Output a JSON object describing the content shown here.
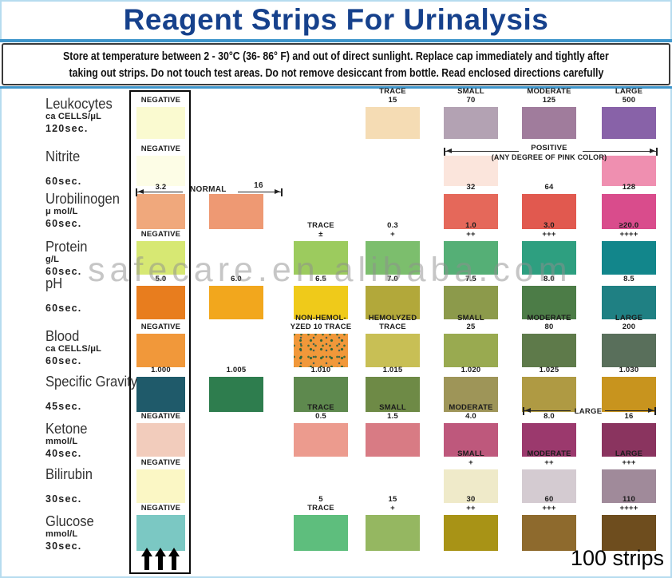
{
  "title": "Reagent Strips For Urinalysis",
  "notice": {
    "line1": "Store  at temperature  between 2 - 30°C (36- 86°  F) and  out  of direct  sunlight.  Replace  cap immediately  and  tightly after",
    "line2": "taking out strips. Do not  touch test areas. Do not  remove desiccant  from bottle. Read  enclosed directions carefully"
  },
  "watermark": "safecare.en.alibaba.com",
  "annotations": {
    "normal_label": "NORMAL",
    "normal_value": "16",
    "large_label": "LARGE"
  },
  "icons": {
    "strip_direction": "up-arrows-icon"
  },
  "footer": {
    "strips_count": "100 strips"
  },
  "chart_data": {
    "type": "table",
    "columns": [
      "strip",
      "A",
      "B",
      "C",
      "D",
      "E",
      "F"
    ],
    "rows": [
      {
        "name": "Leukocytes",
        "unit": "ca CELLS/μL",
        "time": "120sec.",
        "cells": [
          {
            "col": "strip",
            "labels": [
              "NEGATIVE"
            ],
            "color": "#fafad0"
          },
          {
            "col": "C",
            "labels": [
              "TRACE",
              "15"
            ],
            "color": "#f5dcb4"
          },
          {
            "col": "D",
            "labels": [
              "SMALL",
              "70"
            ],
            "color": "#b3a2b3"
          },
          {
            "col": "E",
            "labels": [
              "MODERATE",
              "125"
            ],
            "color": "#a07c9c"
          },
          {
            "col": "F",
            "labels": [
              "LARGE",
              "500"
            ],
            "color": "#8862a8"
          }
        ]
      },
      {
        "name": "Nitrite",
        "unit": "",
        "time": "60sec.",
        "cells": [
          {
            "col": "strip",
            "labels": [
              "NEGATIVE"
            ],
            "color": "#fdfde6"
          },
          {
            "col": "D",
            "labels": [],
            "color": "#fbe5dc"
          },
          {
            "col": "E",
            "type": "text",
            "labels": [
              "POSITIVE",
              "(ANY DEGREE OF PINK COLOR)"
            ]
          },
          {
            "col": "F",
            "labels": [],
            "color": "#ef8fb0"
          }
        ]
      },
      {
        "name": "Urobilinogen",
        "unit": "μ mol/L",
        "time": "60sec.",
        "cells": [
          {
            "col": "strip",
            "labels": [
              "3.2"
            ],
            "color": "#f0a87c"
          },
          {
            "col": "A",
            "labels": [],
            "color": "#ee9973"
          },
          {
            "col": "D",
            "labels": [
              "32"
            ],
            "color": "#e5685a"
          },
          {
            "col": "E",
            "labels": [
              "64"
            ],
            "color": "#e1594f"
          },
          {
            "col": "F",
            "labels": [
              "128"
            ],
            "color": "#d94c8c"
          }
        ]
      },
      {
        "name": "Protein",
        "unit": "g/L",
        "time": "60sec.",
        "cells": [
          {
            "col": "strip",
            "labels": [
              "NEGATIVE"
            ],
            "color": "#d7e873"
          },
          {
            "col": "B",
            "labels": [
              "TRACE",
              "±"
            ],
            "color": "#9ccb5e"
          },
          {
            "col": "C",
            "labels": [
              "0.3",
              "+"
            ],
            "color": "#7cbe6d"
          },
          {
            "col": "D",
            "labels": [
              "1.0",
              "++"
            ],
            "color": "#55af76"
          },
          {
            "col": "E",
            "labels": [
              "3.0",
              "+++"
            ],
            "color": "#2e9f80"
          },
          {
            "col": "F",
            "labels": [
              "≥20.0",
              "++++"
            ],
            "color": "#12868b"
          }
        ]
      },
      {
        "name": "pH",
        "unit": "",
        "time": "60sec.",
        "cells": [
          {
            "col": "strip",
            "labels": [
              "5.0"
            ],
            "color": "#e87d1e"
          },
          {
            "col": "A",
            "labels": [
              "6.0"
            ],
            "color": "#f2a71d"
          },
          {
            "col": "B",
            "labels": [
              "6.5"
            ],
            "color": "#efca1a"
          },
          {
            "col": "C",
            "labels": [
              "7.0"
            ],
            "color": "#b2a83a"
          },
          {
            "col": "D",
            "labels": [
              "7.5"
            ],
            "color": "#8c9a4b"
          },
          {
            "col": "E",
            "labels": [
              "8.0"
            ],
            "color": "#4c7c47"
          },
          {
            "col": "F",
            "labels": [
              "8.5"
            ],
            "color": "#1f8083"
          }
        ]
      },
      {
        "name": "Blood",
        "unit": "ca CELLS/μL",
        "time": "60sec.",
        "cells": [
          {
            "col": "strip",
            "labels": [
              "NEGATIVE"
            ],
            "color": "#f1983a"
          },
          {
            "col": "B",
            "labels": [
              "NON-HEMOL-",
              "YZED 10 TRACE"
            ],
            "color": "#f1983a",
            "speckled": true
          },
          {
            "col": "C",
            "labels": [
              "HEMOLYZED",
              "TRACE"
            ],
            "color": "#c8bf55"
          },
          {
            "col": "D",
            "labels": [
              "SMALL",
              "25"
            ],
            "color": "#99aa50"
          },
          {
            "col": "E",
            "labels": [
              "MODERATE",
              "80"
            ],
            "color": "#5e7a4a"
          },
          {
            "col": "F",
            "labels": [
              "LARGE",
              "200"
            ],
            "color": "#596f5b"
          }
        ]
      },
      {
        "name": "Specific Gravity",
        "unit": "",
        "time": "45sec.",
        "cells": [
          {
            "col": "strip",
            "labels": [
              "1.000"
            ],
            "color": "#1f5a6a"
          },
          {
            "col": "A",
            "labels": [
              "1.005"
            ],
            "color": "#2e7d4e"
          },
          {
            "col": "B",
            "labels": [
              "1.010"
            ],
            "color": "#5e894e"
          },
          {
            "col": "C",
            "labels": [
              "1.015"
            ],
            "color": "#6e8a46"
          },
          {
            "col": "D",
            "labels": [
              "1.020"
            ],
            "color": "#9e9558"
          },
          {
            "col": "E",
            "labels": [
              "1.025"
            ],
            "color": "#af9a43"
          },
          {
            "col": "F",
            "labels": [
              "1.030"
            ],
            "color": "#c8941e"
          }
        ]
      },
      {
        "name": "Ketone",
        "unit": "mmol/L",
        "time": "40sec.",
        "cells": [
          {
            "col": "strip",
            "labels": [
              "NEGATIVE"
            ],
            "color": "#f2ccbc"
          },
          {
            "col": "B",
            "labels": [
              "TRACE",
              "0.5"
            ],
            "color": "#ec9b8e"
          },
          {
            "col": "C",
            "labels": [
              "SMALL",
              "1.5"
            ],
            "color": "#d87b84"
          },
          {
            "col": "D",
            "labels": [
              "MODERATE",
              "4.0"
            ],
            "color": "#be587c"
          },
          {
            "col": "E",
            "labels": [
              "8.0"
            ],
            "color": "#9b396d"
          },
          {
            "col": "F",
            "labels": [
              "16"
            ],
            "color": "#8a345f"
          }
        ]
      },
      {
        "name": "Bilirubin",
        "unit": "",
        "time": "30sec.",
        "cells": [
          {
            "col": "strip",
            "labels": [
              "NEGATIVE"
            ],
            "color": "#fbf7c5"
          },
          {
            "col": "D",
            "labels": [
              "SMALL",
              "+"
            ],
            "color": "#efeac9"
          },
          {
            "col": "E",
            "labels": [
              "MODERATE",
              "++"
            ],
            "color": "#d4cbd1"
          },
          {
            "col": "F",
            "labels": [
              "LARGE",
              "+++"
            ],
            "color": "#a08a9a"
          }
        ]
      },
      {
        "name": "Glucose",
        "unit": "mmol/L",
        "time": "30sec.",
        "cells": [
          {
            "col": "strip",
            "labels": [
              "NEGATIVE"
            ],
            "color": "#7bc8c3"
          },
          {
            "col": "B",
            "labels": [
              "5",
              "TRACE"
            ],
            "color": "#5ebe7d"
          },
          {
            "col": "C",
            "labels": [
              "15",
              "+"
            ],
            "color": "#95b761"
          },
          {
            "col": "D",
            "labels": [
              "30",
              "++"
            ],
            "color": "#a89316"
          },
          {
            "col": "E",
            "labels": [
              "60",
              "+++"
            ],
            "color": "#8e6a2d"
          },
          {
            "col": "F",
            "labels": [
              "110",
              "++++"
            ],
            "color": "#6e4d1e"
          }
        ]
      }
    ]
  }
}
